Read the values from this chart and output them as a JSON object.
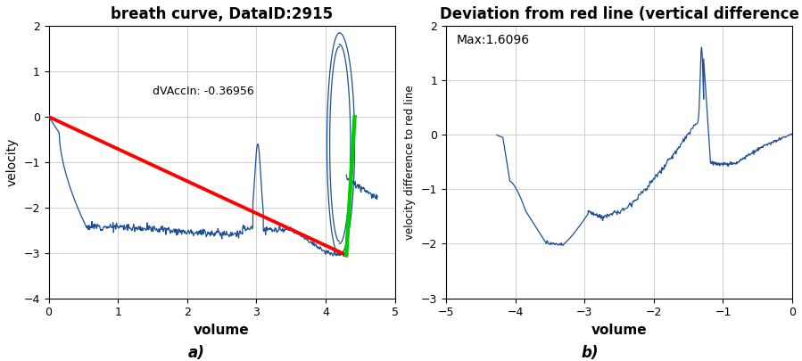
{
  "title_a": "breath curve, DataID:2915",
  "title_b": "Deviation from red line (vertical difference",
  "xlabel": "volume",
  "ylabel_a": "velocity",
  "ylabel_b": "velocity difference to red line",
  "annotation_a": "dVAccIn: -0.36956",
  "annotation_b": "Max:1.6096",
  "xlim_a": [
    0,
    5
  ],
  "ylim_a": [
    -4,
    2
  ],
  "xlim_b": [
    -5,
    0
  ],
  "ylim_b": [
    -3,
    2
  ],
  "red_line_x": [
    0,
    4.3
  ],
  "red_line_y": [
    0,
    -3.05
  ],
  "green_line_x": [
    4.3,
    4.42
  ],
  "green_line_y": [
    -3.05,
    0.0
  ],
  "blue_color": "#1f5096",
  "red_color": "#ff0000",
  "green_color": "#00cc00",
  "label_a": "a)",
  "label_b": "b)"
}
